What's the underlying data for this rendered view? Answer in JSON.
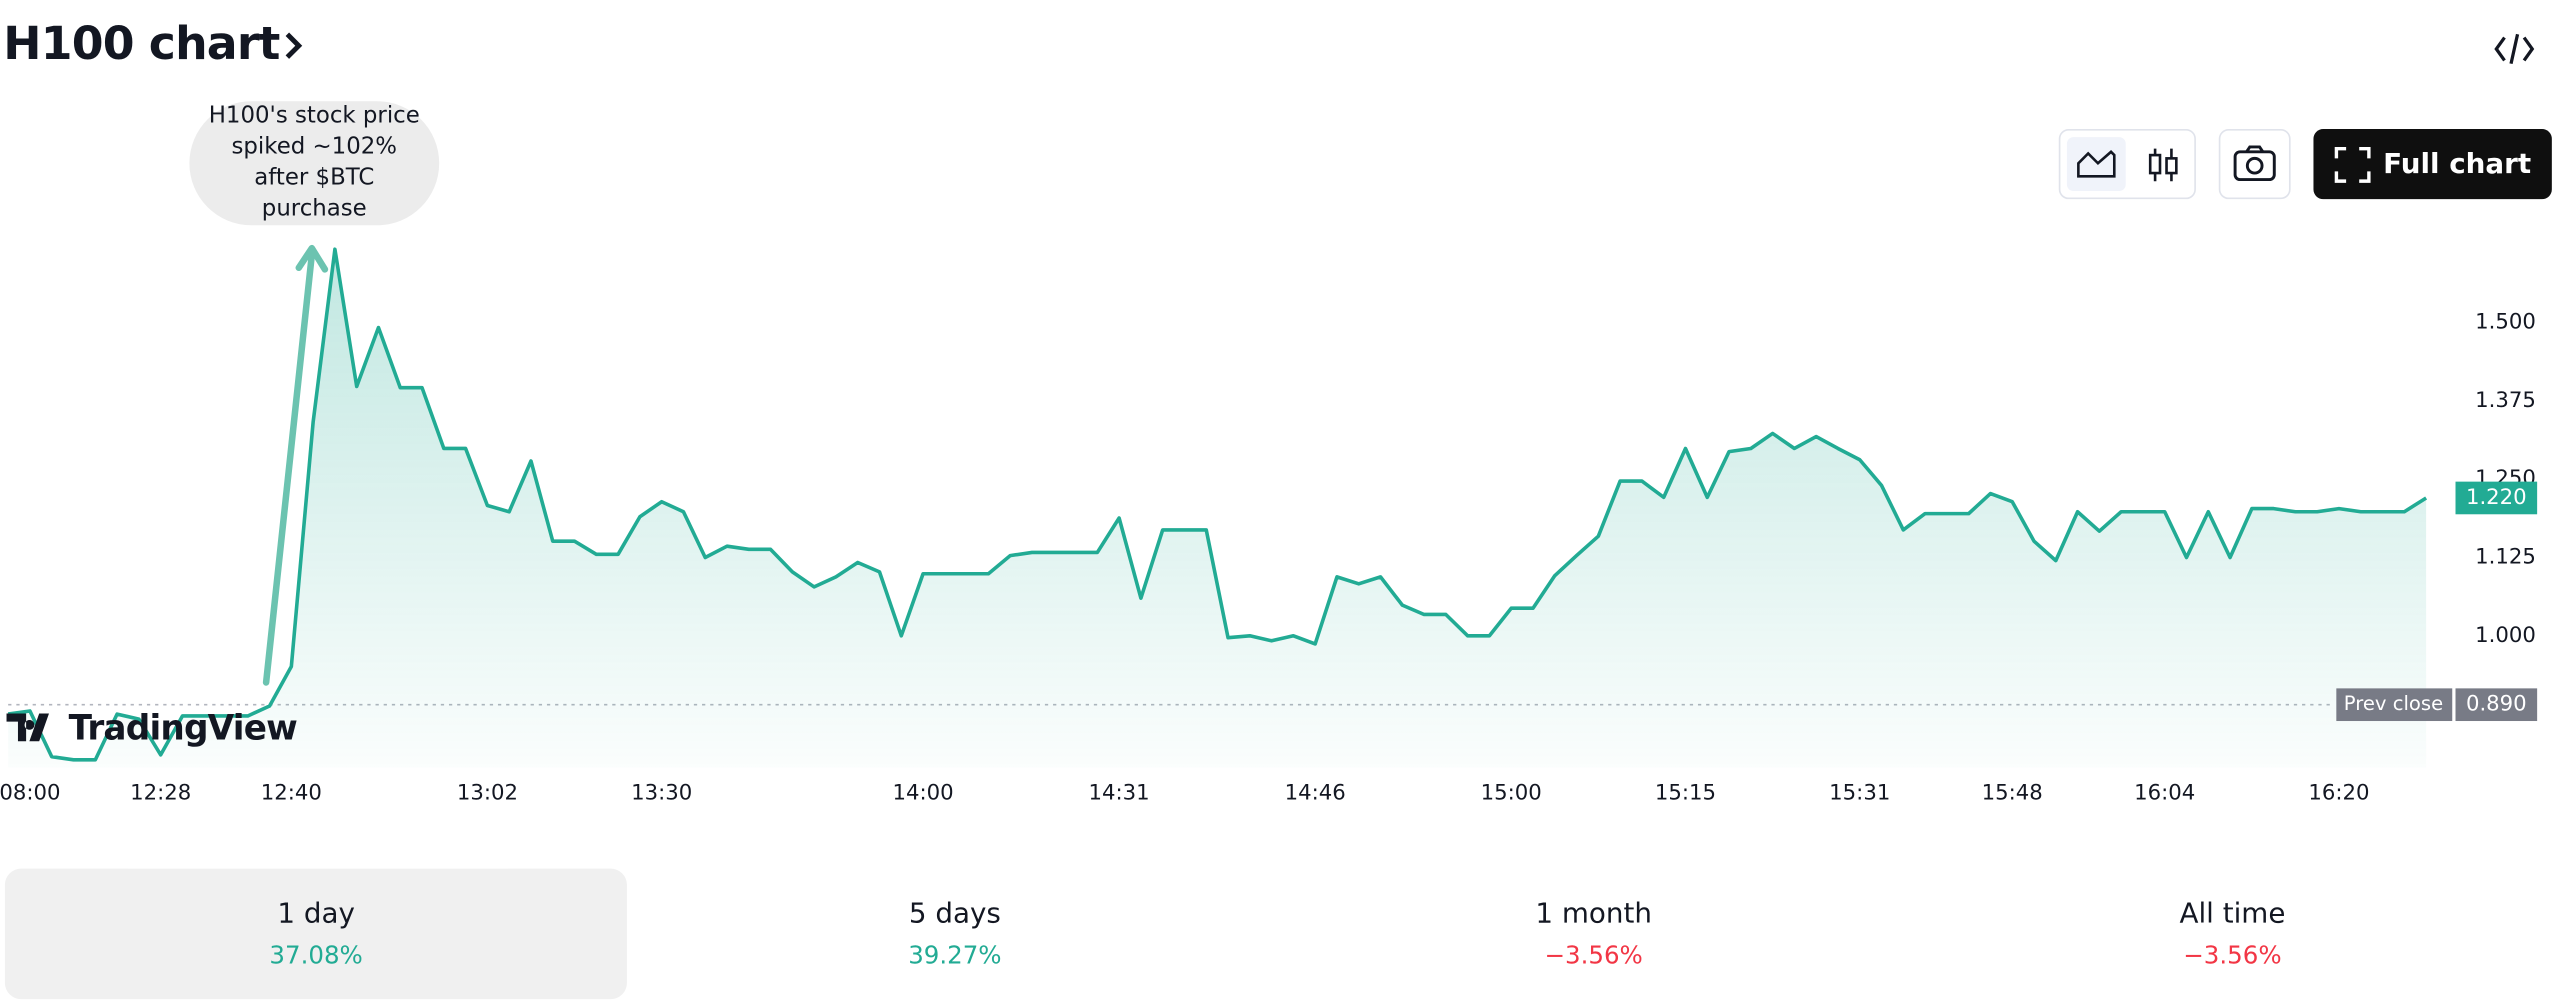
{
  "header": {
    "title": "H100 chart",
    "button": "Full chart"
  },
  "chart_data": {
    "type": "line",
    "annotation": "H100's stock price spiked ~102% after $BTC purchase",
    "watermark": "TradingView",
    "color": "#22ab94",
    "categories": [
      null,
      "08:00",
      null,
      null,
      null,
      null,
      null,
      "12:28",
      null,
      null,
      null,
      null,
      null,
      "12:40",
      null,
      null,
      null,
      null,
      null,
      null,
      null,
      null,
      "13:02",
      null,
      null,
      null,
      null,
      null,
      null,
      null,
      "13:30",
      null,
      null,
      null,
      null,
      null,
      null,
      null,
      null,
      null,
      null,
      null,
      "14:00",
      null,
      null,
      null,
      null,
      null,
      null,
      null,
      null,
      "14:31",
      null,
      null,
      null,
      null,
      null,
      null,
      null,
      null,
      "14:46",
      null,
      null,
      null,
      null,
      null,
      null,
      null,
      null,
      "15:00",
      null,
      null,
      null,
      null,
      null,
      null,
      null,
      "15:15",
      null,
      null,
      null,
      null,
      null,
      null,
      null,
      "15:31",
      null,
      null,
      null,
      null,
      null,
      null,
      "15:48",
      null,
      null,
      null,
      null,
      null,
      null,
      "16:04",
      null,
      null,
      null,
      null,
      null,
      null,
      null,
      "16:20",
      null,
      null,
      null,
      null
    ],
    "values": [
      0.875,
      0.88,
      0.807,
      0.802,
      0.802,
      0.875,
      0.867,
      0.81,
      0.872,
      0.872,
      0.872,
      0.872,
      0.888,
      0.951,
      1.341,
      1.617,
      1.398,
      1.492,
      1.396,
      1.396,
      1.299,
      1.299,
      1.208,
      1.198,
      1.279,
      1.151,
      1.151,
      1.13,
      1.13,
      1.19,
      1.214,
      1.198,
      1.125,
      1.143,
      1.138,
      1.138,
      1.102,
      1.078,
      1.094,
      1.117,
      1.102,
      1.0,
      1.099,
      1.099,
      1.099,
      1.099,
      1.128,
      1.133,
      1.133,
      1.133,
      1.133,
      1.188,
      1.06,
      1.169,
      1.169,
      1.169,
      0.997,
      1.0,
      0.992,
      1.0,
      0.987,
      1.094,
      1.083,
      1.094,
      1.049,
      1.034,
      1.034,
      1.0,
      1.0,
      1.044,
      1.044,
      1.096,
      1.128,
      1.159,
      1.247,
      1.247,
      1.221,
      1.299,
      1.221,
      1.294,
      1.299,
      1.323,
      1.299,
      1.318,
      1.299,
      1.281,
      1.24,
      1.169,
      1.195,
      1.195,
      1.195,
      1.227,
      1.214,
      1.151,
      1.12,
      1.198,
      1.167,
      1.198,
      1.198,
      1.198,
      1.125,
      1.198,
      1.125,
      1.203,
      1.203,
      1.198,
      1.198,
      1.203,
      1.198,
      1.198,
      1.198,
      1.22
    ],
    "last_value_label": "1.220",
    "prev_close": {
      "label": "Prev close",
      "value": 0.89,
      "value_label": "0.890"
    },
    "ylim": [
      0.79,
      1.65
    ],
    "yticks": [
      {
        "value": 1,
        "label": "1.000"
      },
      {
        "value": 1.125,
        "label": "1.125"
      },
      {
        "value": 1.25,
        "label": "1.250"
      },
      {
        "value": 1.375,
        "label": "1.375"
      },
      {
        "value": 1.5,
        "label": "1.500"
      }
    ]
  },
  "periods": [
    {
      "label": "1 day",
      "change": "37.08%",
      "color": "#22ab94"
    },
    {
      "label": "5 days",
      "change": "39.27%",
      "color": "#22ab94"
    },
    {
      "label": "1 month",
      "change": "−3.56%",
      "color": "#f23645"
    },
    {
      "label": "All time",
      "change": "−3.56%",
      "color": "#f23645"
    }
  ]
}
